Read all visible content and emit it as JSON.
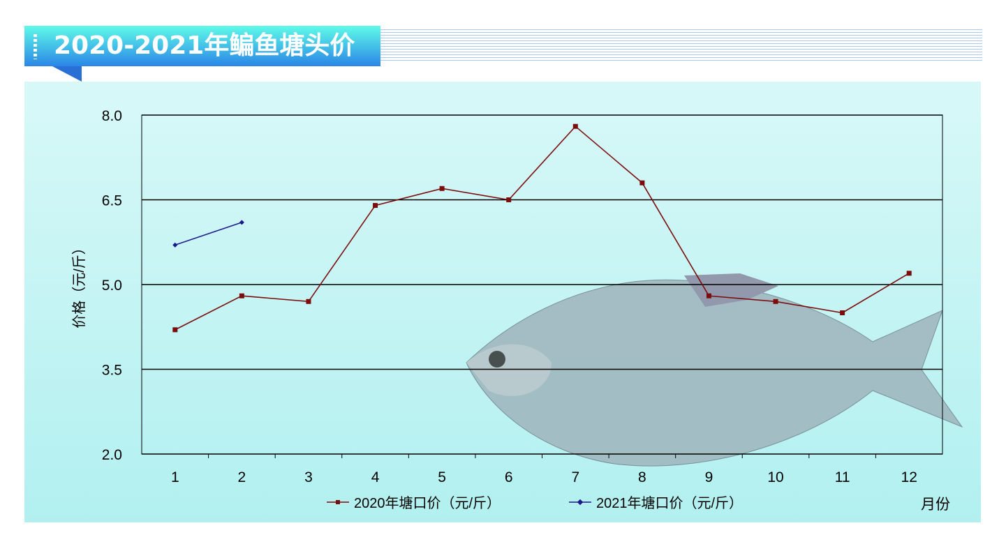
{
  "title": "2020-2021年鳊鱼塘头价",
  "chart_data": {
    "type": "line",
    "title": "2020-2021年鳊鱼塘头价",
    "xlabel": "月份",
    "ylabel": "价格（元/斤）",
    "categories": [
      "1",
      "2",
      "3",
      "4",
      "5",
      "6",
      "7",
      "8",
      "9",
      "10",
      "11",
      "12"
    ],
    "ylim": [
      2.0,
      8.0
    ],
    "yticks": [
      "2.0",
      "3.5",
      "5.0",
      "6.5",
      "8.0"
    ],
    "grid": true,
    "legend": "bottom",
    "series": [
      {
        "name": "2020年塘口价（元/斤）",
        "color": "#7b0d0d",
        "marker": "square",
        "values": [
          4.2,
          4.8,
          4.7,
          6.4,
          6.7,
          6.5,
          7.8,
          6.8,
          4.8,
          4.7,
          4.5,
          5.2
        ]
      },
      {
        "name": "2021年塘口价（元/斤）",
        "color": "#1a1a8c",
        "marker": "diamond",
        "values": [
          5.7,
          6.1,
          null,
          null,
          null,
          null,
          null,
          null,
          null,
          null,
          null,
          null
        ]
      }
    ]
  }
}
